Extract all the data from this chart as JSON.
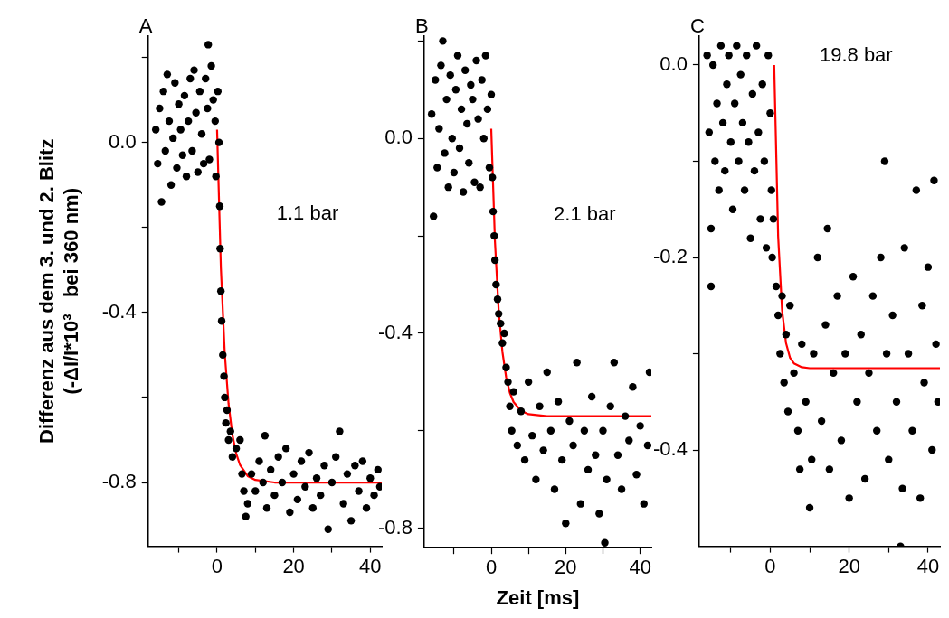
{
  "chart_data": [
    {
      "type": "scatter",
      "title": "A",
      "ylabel": "Differenz aus dem 3. und 2. Blitz\n(-ΔI/I*10³   bei 360 nm)",
      "annotations": [
        "1.1 bar"
      ],
      "grid": false,
      "legend": false,
      "xlim": [
        -18,
        43
      ],
      "xticks": [
        {
          "value": -10,
          "label": null
        },
        0,
        {
          "value": 10,
          "label": null
        },
        20,
        {
          "value": 30,
          "label": null
        },
        40
      ],
      "ylim": [
        -0.95,
        0.25
      ],
      "yticks": [
        {
          "value": 0.2,
          "label": null
        },
        {
          "value": 0,
          "label": "0.0"
        },
        {
          "value": -0.2,
          "label": null
        },
        {
          "value": -0.4,
          "label": "-0.4"
        },
        {
          "value": -0.6,
          "label": null
        },
        {
          "value": -0.8,
          "label": "-0.8"
        }
      ],
      "series": [
        {
          "marker": "circle",
          "color": "#000000",
          "x": [
            -16,
            -15.5,
            -15,
            -14.5,
            -14,
            -13.5,
            -13,
            -12.5,
            -12,
            -11.5,
            -11,
            -10.5,
            -10,
            -9.5,
            -9,
            -8.5,
            -8,
            -7.5,
            -7,
            -6.5,
            -6,
            -5.5,
            -5,
            -4.5,
            -4,
            -3.5,
            -3,
            -2.5,
            -2.3,
            -2,
            -1.5,
            -1,
            -0.5,
            -0.3,
            0.2,
            0.5,
            0.7,
            0.8,
            1.0,
            1.2,
            1.5,
            1.8,
            2.0,
            2.3,
            2.6,
            3,
            3.5,
            4,
            5,
            6,
            6.5,
            7,
            7.5,
            8,
            9,
            10,
            11,
            12,
            12.5,
            13,
            14,
            15,
            16,
            17,
            18,
            19,
            20,
            21,
            22,
            23,
            24,
            25,
            26,
            27,
            28,
            29,
            30,
            31,
            32,
            33,
            34,
            35,
            36,
            37,
            38,
            39,
            40,
            41,
            42,
            42.5
          ],
          "values": [
            0.03,
            -0.05,
            0.08,
            -0.14,
            0.12,
            -0.02,
            0.16,
            0.05,
            -0.1,
            0.01,
            0.14,
            -0.06,
            0.09,
            0.03,
            -0.03,
            0.11,
            -0.08,
            0.05,
            0.15,
            -0.02,
            0.17,
            0.07,
            -0.07,
            0.12,
            0.02,
            -0.05,
            0.15,
            0.08,
            0.23,
            -0.04,
            0.18,
            0.1,
            0.05,
            -0.08,
            0.12,
            0.0,
            -0.15,
            -0.25,
            -0.35,
            -0.42,
            -0.5,
            -0.55,
            -0.6,
            -0.66,
            -0.63,
            -0.7,
            -0.68,
            -0.74,
            -0.72,
            -0.7,
            -0.78,
            -0.82,
            -0.88,
            -0.85,
            -0.78,
            -0.82,
            -0.75,
            -0.8,
            -0.69,
            -0.86,
            -0.77,
            -0.83,
            -0.74,
            -0.8,
            -0.72,
            -0.87,
            -0.78,
            -0.84,
            -0.75,
            -0.81,
            -0.73,
            -0.86,
            -0.79,
            -0.83,
            -0.76,
            -0.91,
            -0.8,
            -0.74,
            -0.68,
            -0.85,
            -0.78,
            -0.89,
            -0.76,
            -0.82,
            -0.75,
            -0.86,
            -0.79,
            -0.83,
            -0.77,
            -0.81
          ]
        },
        {
          "type": "line",
          "marker": "none",
          "color": "#ff0000",
          "x": [
            0,
            1,
            2,
            3,
            4,
            5,
            6,
            8,
            10,
            15,
            43
          ],
          "values": [
            0.03,
            -0.296,
            -0.495,
            -0.615,
            -0.688,
            -0.732,
            -0.759,
            -0.785,
            -0.794,
            -0.8,
            -0.8
          ]
        }
      ]
    },
    {
      "type": "scatter",
      "title": "B",
      "xlabel": "Zeit [ms]",
      "annotations": [
        "2.1 bar"
      ],
      "grid": false,
      "legend": false,
      "xlim": [
        -18,
        43
      ],
      "xticks": [
        {
          "value": -10,
          "label": null
        },
        0,
        {
          "value": 10,
          "label": null
        },
        20,
        {
          "value": 30,
          "label": null
        },
        40
      ],
      "ylim": [
        -0.84,
        0.21
      ],
      "yticks": [
        {
          "value": 0.2,
          "label": null
        },
        {
          "value": 0,
          "label": "0.0"
        },
        {
          "value": -0.2,
          "label": null
        },
        {
          "value": -0.4,
          "label": "-0.4"
        },
        {
          "value": -0.6,
          "label": null
        },
        {
          "value": -0.8,
          "label": "-0.8"
        }
      ],
      "series": [
        {
          "marker": "circle",
          "color": "#000000",
          "x": [
            -16,
            -15.5,
            -15,
            -14.5,
            -14,
            -13.5,
            -13,
            -12.5,
            -12,
            -11.5,
            -11,
            -10.5,
            -10,
            -9.5,
            -9,
            -8.5,
            -8,
            -7.5,
            -7,
            -6.5,
            -6,
            -5.5,
            -5,
            -4.5,
            -4,
            -3.5,
            -3,
            -2.5,
            -2,
            -1.5,
            -1,
            -0.5,
            0,
            0.3,
            0.5,
            0.8,
            1.0,
            1.3,
            1.7,
            2,
            2.5,
            3,
            3.5,
            4,
            4.5,
            5,
            5.5,
            6,
            7,
            8,
            9,
            10,
            11,
            12,
            13,
            14,
            15,
            16,
            17,
            18,
            19,
            20,
            21,
            22,
            23,
            24,
            25,
            26,
            27,
            28,
            29,
            30,
            30.5,
            31,
            32,
            33,
            34,
            35,
            36,
            37,
            38,
            39,
            40,
            41,
            42,
            42.5
          ],
          "values": [
            0.05,
            -0.16,
            0.12,
            -0.06,
            0.02,
            0.15,
            0.2,
            -0.03,
            0.08,
            -0.1,
            0.13,
            0.0,
            -0.07,
            0.1,
            0.17,
            -0.02,
            0.06,
            -0.11,
            0.14,
            0.03,
            -0.05,
            0.11,
            0.08,
            -0.09,
            0.16,
            0.04,
            -0.1,
            0.12,
            0.0,
            0.17,
            0.06,
            -0.06,
            0.09,
            -0.08,
            -0.15,
            -0.2,
            -0.25,
            -0.3,
            -0.33,
            -0.36,
            -0.38,
            -0.42,
            -0.4,
            -0.47,
            -0.5,
            -0.55,
            -0.6,
            -0.52,
            -0.63,
            -0.56,
            -0.66,
            -0.5,
            -0.61,
            -0.7,
            -0.55,
            -0.64,
            -0.48,
            -0.6,
            -0.72,
            -0.54,
            -0.66,
            -0.79,
            -0.58,
            -0.63,
            -0.46,
            -0.75,
            -0.6,
            -0.68,
            -0.53,
            -0.65,
            -0.77,
            -0.6,
            -0.83,
            -0.7,
            -0.55,
            -0.46,
            -0.65,
            -0.72,
            -0.57,
            -0.62,
            -0.51,
            -0.69,
            -0.59,
            -0.75,
            -0.63,
            -0.48
          ]
        },
        {
          "type": "line",
          "marker": "none",
          "color": "#ff0000",
          "x": [
            0,
            1,
            2,
            3,
            4,
            5,
            6,
            8,
            10,
            15,
            43
          ],
          "values": [
            0.02,
            -0.212,
            -0.353,
            -0.438,
            -0.49,
            -0.522,
            -0.541,
            -0.559,
            -0.566,
            -0.57,
            -0.57
          ]
        }
      ]
    },
    {
      "type": "scatter",
      "title": "C",
      "annotations": [
        "19.8 bar"
      ],
      "grid": false,
      "legend": false,
      "xlim": [
        -18,
        43
      ],
      "xticks": [
        {
          "value": -10,
          "label": null
        },
        0,
        {
          "value": 10,
          "label": null
        },
        20,
        {
          "value": 30,
          "label": null
        },
        40
      ],
      "ylim": [
        -0.5,
        0.03
      ],
      "yticks": [
        {
          "value": 0,
          "label": "0.0"
        },
        {
          "value": -0.1,
          "label": null
        },
        {
          "value": -0.2,
          "label": "-0.2"
        },
        {
          "value": -0.3,
          "label": null
        },
        {
          "value": -0.4,
          "label": "-0.4"
        }
      ],
      "series": [
        {
          "marker": "circle",
          "color": "#000000",
          "x": [
            -16,
            -15.5,
            -15,
            -15,
            -14.5,
            -14,
            -13.5,
            -13,
            -12.5,
            -12,
            -11.5,
            -11,
            -10.5,
            -10,
            -9.5,
            -9,
            -8.5,
            -8,
            -7.5,
            -7,
            -6.5,
            -6,
            -5.5,
            -5,
            -4.5,
            -4,
            -3.5,
            -3,
            -2.5,
            -2,
            -1.5,
            -1,
            -0.5,
            0,
            0.3,
            0.5,
            0.8,
            1.5,
            2,
            2.5,
            3,
            3.5,
            4,
            4.5,
            5,
            6,
            7,
            7.5,
            8,
            9,
            10,
            10.5,
            11,
            12,
            13,
            14,
            14.5,
            15,
            16,
            17,
            18,
            19,
            20,
            21,
            22,
            23,
            24,
            25,
            26,
            27,
            28,
            29,
            29.5,
            30,
            31,
            32,
            33,
            33.5,
            34,
            35,
            36,
            37,
            38,
            38.5,
            39,
            40,
            41,
            41.5,
            42,
            42.5
          ],
          "values": [
            0.01,
            -0.07,
            -0.23,
            -0.17,
            0.0,
            -0.1,
            -0.04,
            -0.13,
            0.02,
            -0.06,
            -0.11,
            -0.02,
            0.01,
            -0.08,
            -0.15,
            -0.04,
            0.02,
            -0.1,
            -0.01,
            -0.06,
            -0.13,
            0.01,
            -0.08,
            -0.18,
            -0.03,
            -0.11,
            0.02,
            -0.07,
            -0.16,
            -0.02,
            -0.1,
            -0.19,
            0.01,
            -0.05,
            -0.13,
            -0.2,
            -0.16,
            -0.23,
            -0.26,
            -0.3,
            -0.24,
            -0.33,
            -0.28,
            -0.36,
            -0.25,
            -0.32,
            -0.38,
            -0.42,
            -0.29,
            -0.35,
            -0.46,
            -0.41,
            -0.3,
            -0.2,
            -0.37,
            -0.27,
            -0.17,
            -0.42,
            -0.32,
            -0.24,
            -0.39,
            -0.3,
            -0.45,
            -0.22,
            -0.35,
            -0.28,
            -0.43,
            -0.32,
            -0.24,
            -0.38,
            -0.2,
            -0.1,
            -0.3,
            -0.41,
            -0.26,
            -0.35,
            -0.5,
            -0.44,
            -0.19,
            -0.3,
            -0.38,
            -0.13,
            -0.45,
            -0.25,
            -0.33,
            -0.21,
            -0.4,
            -0.12,
            -0.29,
            -0.35
          ]
        },
        {
          "type": "line",
          "marker": "none",
          "color": "#ff0000",
          "x": [
            1,
            2,
            3,
            4,
            5,
            6,
            8,
            10,
            43
          ],
          "values": [
            0,
            -0.178,
            -0.255,
            -0.289,
            -0.304,
            -0.31,
            -0.314,
            -0.315,
            -0.315
          ]
        }
      ]
    }
  ]
}
